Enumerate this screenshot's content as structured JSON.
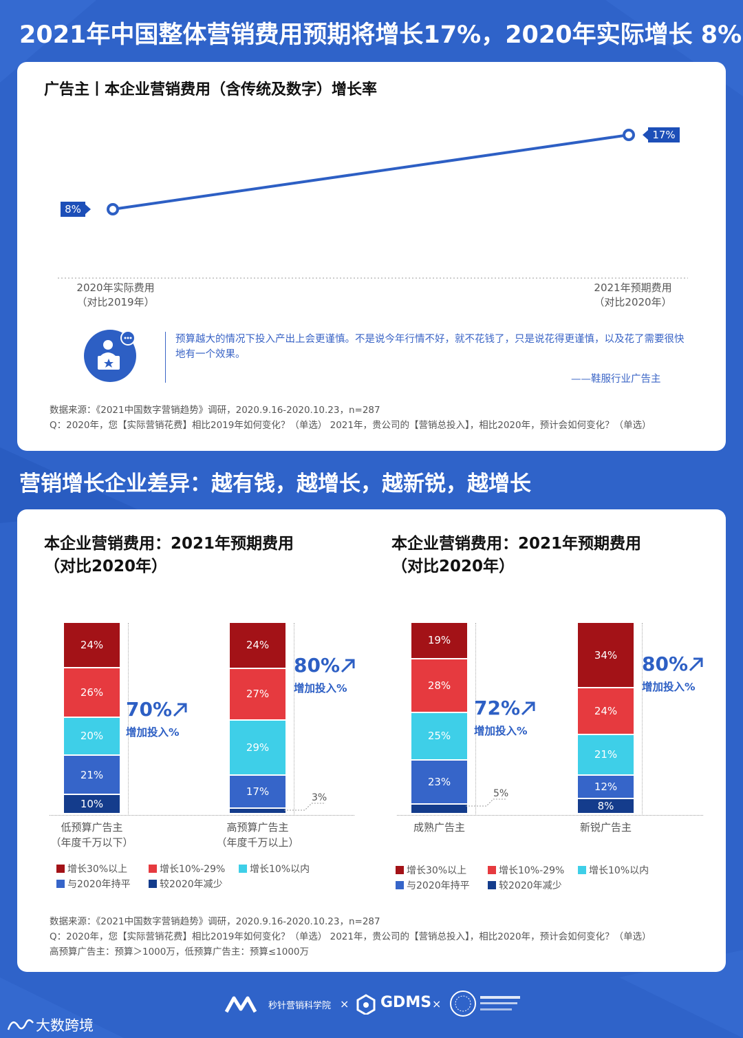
{
  "header": {
    "title": "2021年中国整体营销费用预期将增长17%，2020年实际增长 8%"
  },
  "section1": {
    "subtitle": "广告主丨本企业营销费用（含传统及数字）增长率",
    "quote": "预算越大的情况下投入产出上会更谨慎。不是说今年行情不好，就不花钱了，只是说花得更谨慎，以及花了需要很快地有一个效果。",
    "quote_source": "——鞋服行业广告主",
    "note_source": "数据来源：《2021中国数字营销趋势》调研，2020.9.16-2020.10.23，n=287",
    "note_q": "Q：2020年，您【实际营销花费】相比2019年如何变化？（单选）   2021年，贵公司的【营销总投入】，相比2020年，预计会如何变化？（单选）"
  },
  "chart_data": [
    {
      "type": "line",
      "categories": [
        "2020年实际费用（对比2019年）",
        "2021年预期费用（对比2020年）"
      ],
      "category_lines": [
        [
          "2020年实际费用",
          "（对比2019年）"
        ],
        [
          "2021年预期费用",
          "（对比2020年）"
        ]
      ],
      "values": [
        8,
        17
      ],
      "value_labels": [
        "8%",
        "17%"
      ],
      "color": "#2d5fc4",
      "ylim": [
        0,
        20
      ]
    },
    {
      "type": "bar",
      "stacked": true,
      "title": "本企业营销费用：2021年预期费用（对比2020年）",
      "categories": [
        "低预算广告主（年度千万以下）",
        "高预算广告主（年度千万以上）"
      ],
      "category_lines": [
        [
          "低预算广告主",
          "（年度千万以下）"
        ],
        [
          "高预算广告主",
          "（年度千万以上）"
        ]
      ],
      "series": [
        {
          "name": "较2020年减少",
          "values": [
            10,
            3
          ]
        },
        {
          "name": "与2020年持平",
          "values": [
            21,
            17
          ]
        },
        {
          "name": "增长10%以内",
          "values": [
            20,
            29
          ]
        },
        {
          "name": "增长10%-29%",
          "values": [
            26,
            27
          ]
        },
        {
          "name": "增长30%以上",
          "values": [
            24,
            24
          ]
        }
      ],
      "summary": [
        {
          "value": "70%",
          "label": "增加投入%"
        },
        {
          "value": "80%",
          "label": "增加投入%"
        }
      ]
    },
    {
      "type": "bar",
      "stacked": true,
      "title": "本企业营销费用：2021年预期费用（对比2020年）",
      "categories": [
        "成熟广告主",
        "新锐广告主"
      ],
      "category_lines": [
        [
          "成熟广告主"
        ],
        [
          "新锐广告主"
        ]
      ],
      "series": [
        {
          "name": "较2020年减少",
          "values": [
            5,
            8
          ]
        },
        {
          "name": "与2020年持平",
          "values": [
            23,
            12
          ]
        },
        {
          "name": "增长10%以内",
          "values": [
            25,
            21
          ]
        },
        {
          "name": "增长10%-29%",
          "values": [
            28,
            24
          ]
        },
        {
          "name": "增长30%以上",
          "values": [
            19,
            34
          ]
        }
      ],
      "summary": [
        {
          "value": "72%",
          "label": "增加投入%"
        },
        {
          "value": "80%",
          "label": "增加投入%"
        }
      ]
    }
  ],
  "colors": {
    "增长30%以上": "#a31217",
    "增长10%-29%": "#e63a3f",
    "增长10%以内": "#3ecfe8",
    "与2020年持平": "#3665c9",
    "较2020年减少": "#143c8c",
    "accent": "#2d5fc4"
  },
  "section2": {
    "title": "营销增长企业差异：越有钱，越增长，越新锐，越增长",
    "chart_title_line1": "本企业营销费用：2021年预期费用",
    "chart_title_line2": "（对比2020年）",
    "legend": [
      "增长30%以上",
      "增长10%-29%",
      "增长10%以内",
      "与2020年持平",
      "较2020年减少"
    ],
    "note_source": "数据来源：《2021中国数字营销趋势》调研，2020.9.16-2020.10.23，n=287",
    "note_q": "Q：2020年，您【实际营销花费】相比2019年如何变化？（单选）    2021年，贵公司的【营销总投入】，相比2020年，预计会如何变化？（单选）",
    "note_def": "高预算广告主：预算＞1000万，低预算广告主：预算≤1000万"
  },
  "footer": {
    "logo1": "秒针营销科学院",
    "x1": "×",
    "logo2": "GDMS",
    "x2": "×",
    "watermark": "大数跨境"
  }
}
